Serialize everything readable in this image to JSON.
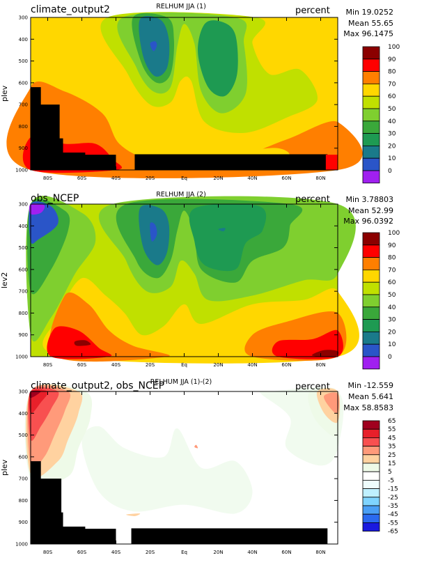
{
  "chart_data": [
    {
      "type": "contour",
      "title": "RELHUM JJA (1)",
      "case_label": "climate_output2",
      "units": "percent",
      "stats": {
        "min": "Min 19.0252",
        "mean": "Mean 55.65",
        "max": "Max 96.1475"
      },
      "ylabel": "plev",
      "x_ticks": [
        "80S",
        "60S",
        "40S",
        "20S",
        "Eq",
        "20N",
        "40N",
        "60N",
        "80N"
      ],
      "y_ticks": [
        "300",
        "400",
        "500",
        "600",
        "700",
        "800",
        "900",
        "1000"
      ],
      "x_range": [
        -90,
        90
      ],
      "y_range": [
        300,
        1000
      ],
      "legend_levels": [
        "100",
        "90",
        "80",
        "70",
        "60",
        "50",
        "40",
        "30",
        "20",
        "10",
        "0"
      ],
      "legend_colors": [
        "#8b0000",
        "#ff0000",
        "#ff7f00",
        "#ffd700",
        "#c0e000",
        "#7fcf2f",
        "#3aa83a",
        "#1e9a52",
        "#1a7a8a",
        "#2a55c8",
        "#a020f0"
      ]
    },
    {
      "type": "contour",
      "title": "RELHUM JJA (2)",
      "case_label": "obs_NCEP",
      "units": "percent",
      "stats": {
        "min": "Min 3.78803",
        "mean": "Mean 52.99",
        "max": "Max 96.0392"
      },
      "ylabel": "lev2",
      "x_ticks": [
        "80S",
        "60S",
        "40S",
        "20S",
        "Eq",
        "20N",
        "40N",
        "60N",
        "80N"
      ],
      "y_ticks": [
        "300",
        "400",
        "500",
        "600",
        "700",
        "800",
        "900",
        "1000"
      ],
      "x_range": [
        -90,
        90
      ],
      "y_range": [
        300,
        1000
      ],
      "legend_levels": [
        "100",
        "90",
        "80",
        "70",
        "60",
        "50",
        "40",
        "30",
        "20",
        "10",
        "0"
      ],
      "legend_colors": [
        "#8b0000",
        "#ff0000",
        "#ff7f00",
        "#ffd700",
        "#c0e000",
        "#7fcf2f",
        "#3aa83a",
        "#1e9a52",
        "#1a7a8a",
        "#2a55c8",
        "#a020f0"
      ]
    },
    {
      "type": "contour",
      "title": "RELHUM JJA (1)-(2)",
      "case_label": "climate_output2, obs_NCEP",
      "units": "percent",
      "stats": {
        "min": "Min -12.559",
        "mean": "Mean 5.641",
        "max": "Max 58.8583"
      },
      "ylabel": "plev",
      "x_ticks": [
        "80S",
        "60S",
        "40S",
        "20S",
        "Eq",
        "20N",
        "40N",
        "60N",
        "80N"
      ],
      "y_ticks": [
        "300",
        "400",
        "500",
        "600",
        "700",
        "800",
        "900",
        "1000"
      ],
      "x_range": [
        -90,
        90
      ],
      "y_range": [
        300,
        1000
      ],
      "legend_levels": [
        "65",
        "55",
        "45",
        "35",
        "25",
        "15",
        "5",
        "-5",
        "-15",
        "-25",
        "-35",
        "-45",
        "-55",
        "-65"
      ],
      "legend_colors": [
        "#a0001e",
        "#e8202a",
        "#f85050",
        "#ff9a7a",
        "#ffd2a0",
        "#eefae8",
        "#ffffff",
        "#eefcfc",
        "#bff0ff",
        "#7fd4ff",
        "#4a9ff5",
        "#2a6af0",
        "#1a1adf"
      ]
    }
  ]
}
